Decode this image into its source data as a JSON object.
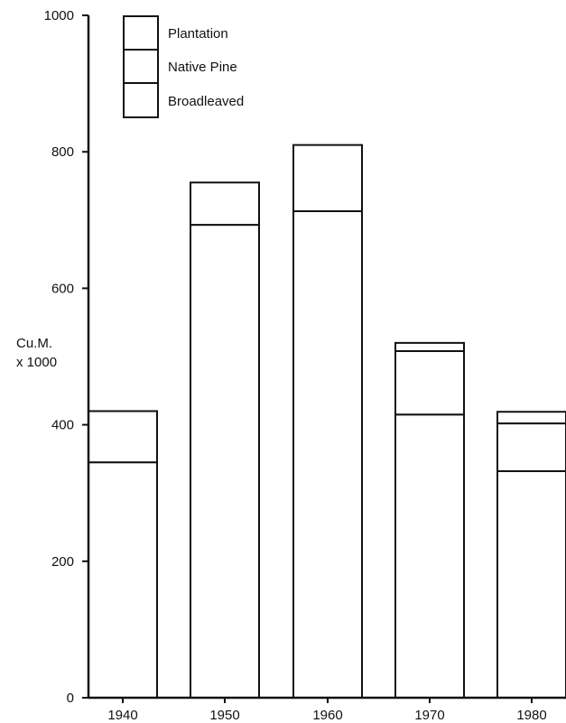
{
  "chart_data": {
    "type": "bar",
    "stacked": true,
    "categories": [
      "1940",
      "1950",
      "1960",
      "1970",
      "1980"
    ],
    "series": [
      {
        "name": "Broadleaved",
        "values": [
          345,
          693,
          713,
          415,
          332
        ]
      },
      {
        "name": "Native Pine",
        "values": [
          0,
          0,
          0,
          93,
          70
        ]
      },
      {
        "name": "Plantation",
        "values": [
          75,
          62,
          97,
          12,
          17
        ]
      }
    ],
    "title": "",
    "xlabel": "",
    "ylabel": [
      "Cu.M.",
      "x 1000"
    ],
    "ylim": [
      0,
      1000
    ],
    "yticks": [
      "0",
      "200",
      "400",
      "600",
      "800",
      "1000"
    ],
    "legend": [
      "Plantation",
      "Native Pine",
      "Broadleaved"
    ],
    "legend_position": "top-left",
    "grid": false,
    "colors": {
      "fill": "#ffffff",
      "stroke": "#111111"
    }
  }
}
